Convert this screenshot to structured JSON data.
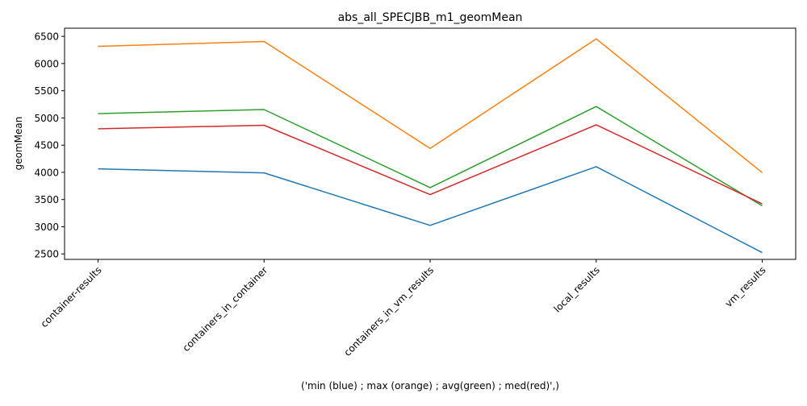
{
  "chart_data": {
    "type": "line",
    "title": "abs_all_SPECJBB_m1_geomMean",
    "xlabel": "('min (blue) ; max (orange) ; avg(green) ; med(red)',)",
    "ylabel": "geomMean",
    "categories": [
      "container-results",
      "containers_in_container",
      "containers_in_vm_results",
      "local_results",
      "vm_results"
    ],
    "ylim": [
      2400,
      6650
    ],
    "yticks": [
      2500,
      3000,
      3500,
      4000,
      4500,
      5000,
      5500,
      6000,
      6500
    ],
    "grid": false,
    "legend": "none",
    "series": [
      {
        "color": "#1f77b4",
        "values": [
          4065,
          3990,
          3025,
          4105,
          2525
        ]
      },
      {
        "color": "#ff7f0e",
        "values": [
          6315,
          6405,
          4440,
          6455,
          3995
        ]
      },
      {
        "color": "#2ca02c",
        "values": [
          5080,
          5155,
          3720,
          5210,
          3385
        ]
      },
      {
        "color": "#d62728",
        "values": [
          4800,
          4865,
          3590,
          4875,
          3420
        ]
      }
    ]
  }
}
